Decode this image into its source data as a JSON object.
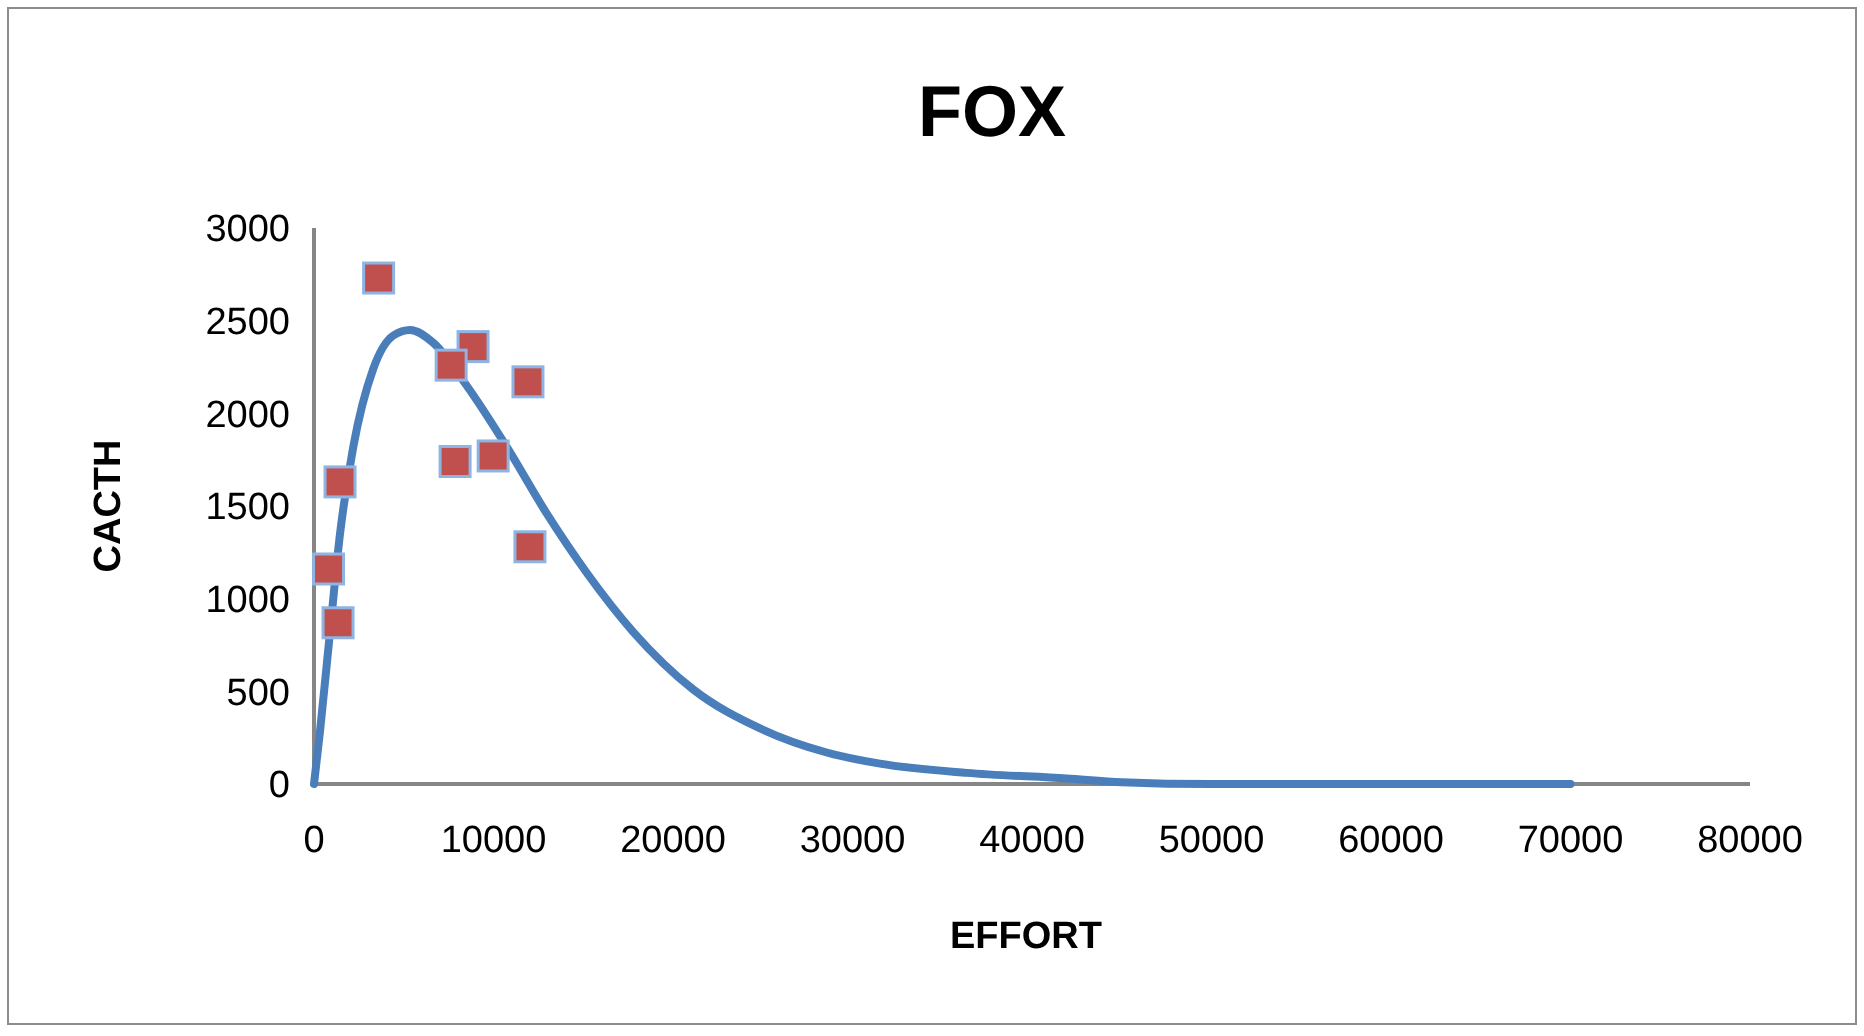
{
  "chart_data": {
    "type": "scatter",
    "title": "FOX",
    "xlabel": "EFFORT",
    "ylabel": "CACTH",
    "xlim": [
      0,
      80000
    ],
    "xticks": [
      0,
      10000,
      20000,
      30000,
      40000,
      50000,
      60000,
      70000,
      80000
    ],
    "ylim": [
      0,
      3000
    ],
    "yticks": [
      0,
      500,
      1000,
      1500,
      2000,
      2500,
      3000
    ],
    "grid": false,
    "series": [
      {
        "marker": "square",
        "color": "#c0504d",
        "x": [
          3600,
          8860,
          7640,
          11920,
          7860,
          9980,
          1450,
          810,
          1340,
          12030
        ],
        "values": [
          2730,
          2360,
          2260,
          2170,
          1740,
          1770,
          1630,
          1160,
          870,
          1280
        ]
      },
      {
        "type": "line",
        "marker": "none",
        "line_style": "solid",
        "color": "#4a7ebb",
        "x": [
          0,
          330,
          890,
          1450,
          2190,
          3300,
          4420,
          5350,
          6650,
          8500,
          10730,
          12960,
          15190,
          17790,
          21130,
          24850,
          28560,
          31530,
          36360,
          41930,
          45000,
          50000,
          60000,
          70000
        ],
        "values": [
          0,
          280,
          820,
          1350,
          1820,
          2240,
          2420,
          2450,
          2380,
          2150,
          1820,
          1460,
          1140,
          820,
          510,
          300,
          170,
          110,
          60,
          30,
          10,
          0,
          0,
          0
        ]
      }
    ]
  }
}
